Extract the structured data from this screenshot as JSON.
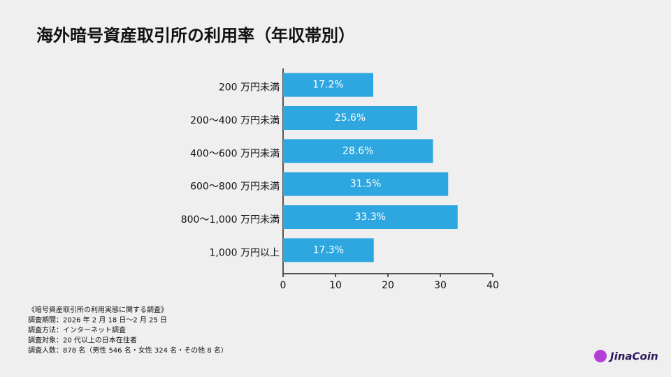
{
  "chart_data": {
    "type": "hbar",
    "title": "海外暗号資産取引所の利用率（年収帯別）",
    "categories": [
      "200 万円未満",
      "200〜400 万円未満",
      "400〜600 万円未満",
      "600〜800 万円未満",
      "800〜1,000 万円未満",
      "1,000 万円以上"
    ],
    "values": [
      17.2,
      25.6,
      28.6,
      31.5,
      33.3,
      17.3
    ],
    "value_labels": [
      "17.2%",
      "25.6%",
      "28.6%",
      "31.5%",
      "33.3%",
      "17.3%"
    ],
    "color": "#2ea7e0",
    "xlim": [
      0,
      40
    ],
    "xticks": [
      0,
      10,
      20,
      30,
      40
    ]
  },
  "footnote": [
    "《暗号資産取引所の利用実態に関する調査》",
    "調査期間：2026 年 2 月 18 日〜2 月 25 日",
    "調査方法：インターネット調査",
    "調査対象：20 代以上の日本在住者",
    "調査人数：878 名（男性 546 名・女性 324 名・その他 8 名）"
  ],
  "logo": "JinaCoin"
}
